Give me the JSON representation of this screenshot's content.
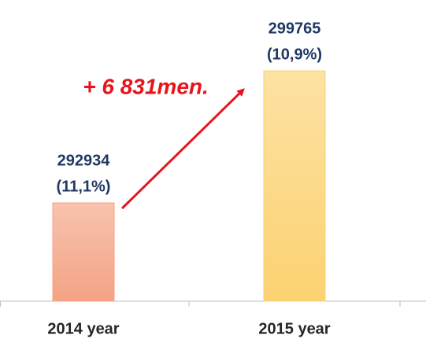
{
  "chart_data": {
    "type": "bar",
    "categories": [
      "2014 year",
      "2015 year"
    ],
    "values": [
      292934,
      299765
    ],
    "share_labels": [
      "(11,1%)",
      "(10,9%)"
    ],
    "colors": [
      "#f4a384",
      "#fcd272"
    ],
    "ylim": [
      287850,
      300500
    ],
    "annotation": "+ 6 831men."
  }
}
